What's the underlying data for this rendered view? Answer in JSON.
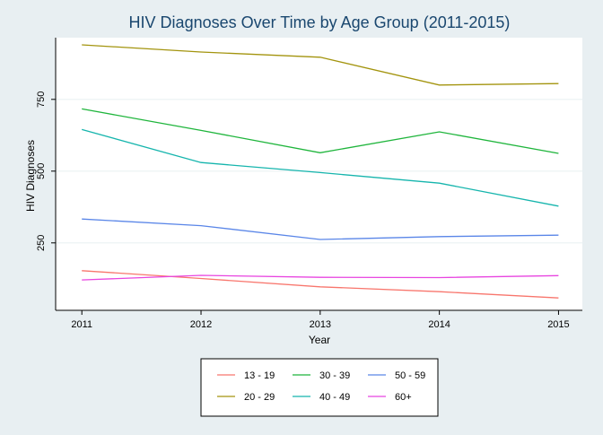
{
  "chart_data": {
    "type": "line",
    "title": "HIV Diagnoses Over Time by Age Group (2011-2015)",
    "xlabel": "Year",
    "ylabel": "HIV Diagnoses",
    "x": [
      2011,
      2012,
      2013,
      2014,
      2015
    ],
    "xlim": [
      2010.78,
      2015.2
    ],
    "ylim": [
      15,
      965
    ],
    "xticks": [
      2011,
      2012,
      2013,
      2014,
      2015
    ],
    "yticks": [
      250,
      500,
      750
    ],
    "grid": true,
    "legend_position": "bottom",
    "series": [
      {
        "name": "13 - 19",
        "color": "#f8766d",
        "values": [
          153,
          126,
          97,
          80,
          58
        ]
      },
      {
        "name": "20 - 29",
        "color": "#a3940e",
        "values": [
          940,
          915,
          897,
          800,
          805
        ]
      },
      {
        "name": "30 - 39",
        "color": "#1fb53c",
        "values": [
          717,
          642,
          564,
          637,
          562
        ]
      },
      {
        "name": "40 - 49",
        "color": "#16b5ad",
        "values": [
          645,
          530,
          495,
          458,
          378
        ]
      },
      {
        "name": "50 - 59",
        "color": "#5a86e8",
        "values": [
          333,
          310,
          262,
          272,
          277
        ]
      },
      {
        "name": "60+",
        "color": "#e845e0",
        "values": [
          121,
          137,
          130,
          129,
          136
        ]
      }
    ]
  }
}
